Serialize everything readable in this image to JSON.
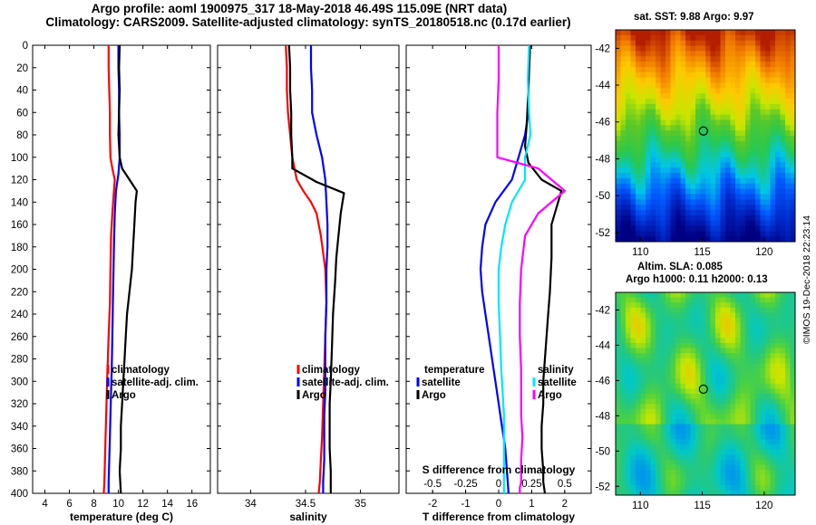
{
  "title_line1": "Argo profile: aoml 1900975_317 18-May-2018 46.49S 115.09E (NRT data)",
  "title_line2": "Climatology: CARS2009. Satellite-adjusted climatology: synTS_20180518.nc (0.17d earlier)",
  "colors": {
    "climatology": "#ff0000",
    "satellite": "#0000ff",
    "argo": "#000000",
    "s_satellite": "#00e5ff",
    "s_climatology": "#ff00ff"
  },
  "chart_data": [
    {
      "type": "line",
      "name": "temperature",
      "xlabel": "temperature (deg C)",
      "ylabel": "",
      "xlim": [
        3,
        17.5
      ],
      "ylim": [
        400,
        0
      ],
      "xticks": [
        4,
        6,
        8,
        10,
        12,
        14,
        16
      ],
      "yticks": [
        0,
        20,
        40,
        60,
        80,
        100,
        120,
        140,
        160,
        180,
        200,
        220,
        240,
        260,
        280,
        300,
        320,
        340,
        360,
        380,
        400
      ],
      "legend": [
        "climatology",
        "satellite-adj. clim.",
        "Argo"
      ],
      "series": [
        {
          "name": "climatology",
          "color": "#ff0000",
          "x": [
            9.2,
            9.2,
            9.25,
            9.3,
            9.3,
            9.35,
            9.5,
            9.7,
            9.6,
            9.5,
            9.4,
            9.35,
            9.3,
            9.2,
            9.1,
            9.05,
            9.0,
            8.95,
            8.9,
            8.85,
            8.8
          ],
          "y": [
            0,
            20,
            40,
            60,
            80,
            100,
            110,
            120,
            135,
            150,
            170,
            200,
            230,
            260,
            290,
            310,
            330,
            350,
            370,
            390,
            400
          ]
        },
        {
          "name": "satellite-adj. clim.",
          "color": "#0000ff",
          "x": [
            10.0,
            10.0,
            10.05,
            10.05,
            10.1,
            10.1,
            10.0,
            9.8,
            9.7,
            9.65,
            9.6,
            9.55,
            9.5,
            9.45,
            9.4,
            9.35,
            9.3,
            9.25,
            9.2,
            9.2
          ],
          "y": [
            0,
            20,
            40,
            60,
            80,
            100,
            115,
            130,
            150,
            170,
            200,
            230,
            260,
            290,
            310,
            330,
            350,
            370,
            390,
            400
          ]
        },
        {
          "name": "Argo",
          "color": "#000000",
          "x": [
            10.1,
            10.05,
            10.1,
            10.05,
            10.0,
            10.1,
            10.3,
            10.9,
            11.5,
            11.4,
            11.3,
            11.2,
            11.1,
            10.9,
            10.7,
            10.6,
            10.5,
            10.4,
            10.3,
            10.2,
            10.2,
            10.1,
            10.2
          ],
          "y": [
            0,
            20,
            40,
            60,
            80,
            100,
            110,
            120,
            130,
            140,
            160,
            180,
            200,
            220,
            240,
            260,
            280,
            300,
            320,
            340,
            360,
            380,
            400
          ]
        }
      ]
    },
    {
      "type": "line",
      "name": "salinity",
      "xlabel": "salinity",
      "ylabel": "",
      "xlim": [
        33.7,
        35.35
      ],
      "ylim": [
        400,
        0
      ],
      "xticks": [
        34,
        34.5,
        35
      ],
      "xticklabels": [
        "34",
        "34.5",
        "35"
      ],
      "legend": [
        "climatology",
        "satellite-adj. clim.",
        "Argo"
      ],
      "series": [
        {
          "name": "climatology",
          "color": "#ff0000",
          "x": [
            34.32,
            34.33,
            34.33,
            34.34,
            34.36,
            34.38,
            34.4,
            34.42,
            34.48,
            34.55,
            34.6,
            34.64,
            34.68,
            34.69,
            34.68,
            34.67,
            34.66,
            34.65,
            34.64,
            34.63,
            34.62
          ],
          "y": [
            0,
            20,
            40,
            60,
            80,
            100,
            110,
            120,
            130,
            140,
            150,
            170,
            200,
            230,
            260,
            290,
            320,
            350,
            370,
            390,
            400
          ]
        },
        {
          "name": "satellite-adj. clim.",
          "color": "#0000ff",
          "x": [
            34.55,
            34.55,
            34.56,
            34.56,
            34.6,
            34.65,
            34.68,
            34.69,
            34.7,
            34.7,
            34.69,
            34.69,
            34.68,
            34.68,
            34.68,
            34.67,
            34.67,
            34.67,
            34.66,
            34.66
          ],
          "y": [
            0,
            20,
            40,
            60,
            80,
            100,
            120,
            140,
            160,
            180,
            200,
            230,
            260,
            290,
            310,
            330,
            350,
            370,
            390,
            400
          ]
        },
        {
          "name": "Argo",
          "color": "#000000",
          "x": [
            34.35,
            34.36,
            34.36,
            34.37,
            34.37,
            34.38,
            34.38,
            34.6,
            34.85,
            34.82,
            34.8,
            34.78,
            34.77,
            34.75,
            34.74,
            34.73,
            34.72,
            34.72,
            34.72,
            34.73,
            34.73
          ],
          "y": [
            0,
            20,
            40,
            60,
            80,
            100,
            110,
            122,
            132,
            150,
            170,
            190,
            210,
            240,
            270,
            300,
            320,
            340,
            360,
            380,
            400
          ]
        }
      ]
    },
    {
      "type": "line",
      "name": "differences",
      "xlabel": "T difference from climatology",
      "xlabel_top": "S difference from climatology",
      "xlim": [
        -2.8,
        2.8
      ],
      "ylim": [
        400,
        0
      ],
      "xticks": [
        -2,
        -1,
        0,
        1,
        2
      ],
      "top_axis": {
        "xlim": [
          -0.7,
          0.7
        ],
        "xticks": [
          -0.5,
          -0.25,
          0,
          0.25,
          0.5
        ],
        "xticklabels": [
          "-0.5",
          "-0.25",
          "0",
          "0.25",
          "0.5"
        ]
      },
      "legend_temperature": {
        "title": "temperature",
        "entries": [
          "satellite",
          "Argo"
        ]
      },
      "legend_salinity": {
        "title": "salinity",
        "entries": [
          "satellite",
          "Argo"
        ]
      },
      "series": [
        {
          "name": "temperature satellite",
          "axis": "T",
          "color": "#0000ff",
          "x": [
            0.95,
            0.9,
            0.9,
            0.8,
            0.6,
            0.4,
            -0.1,
            -0.4,
            -0.5,
            -0.55,
            -0.5,
            -0.4,
            -0.3,
            -0.2,
            -0.1,
            0.0,
            0.1,
            0.2,
            0.25,
            0.3
          ],
          "y": [
            0,
            30,
            60,
            80,
            100,
            120,
            140,
            160,
            180,
            200,
            220,
            240,
            260,
            280,
            300,
            320,
            340,
            360,
            380,
            400
          ]
        },
        {
          "name": "temperature Argo",
          "axis": "T",
          "color": "#000000",
          "x": [
            0.95,
            0.9,
            0.85,
            0.8,
            0.9,
            1.3,
            1.9,
            1.6,
            1.6,
            1.55,
            1.5,
            1.45,
            1.4,
            1.35,
            1.35,
            1.3,
            1.3,
            1.35,
            1.35,
            1.4
          ],
          "y": [
            0,
            40,
            70,
            90,
            105,
            120,
            130,
            160,
            190,
            220,
            240,
            260,
            280,
            300,
            320,
            340,
            360,
            380,
            390,
            400
          ]
        },
        {
          "name": "salinity satellite",
          "axis": "S",
          "color": "#00e5ff",
          "x": [
            0.23,
            0.22,
            0.23,
            0.24,
            0.2,
            0.2,
            0.1,
            0.05,
            0.02,
            0.0,
            0.0,
            0.01,
            0.02,
            0.03,
            0.04,
            0.04,
            0.04,
            0.04,
            0.04,
            0.04
          ],
          "y": [
            0,
            30,
            60,
            80,
            100,
            120,
            140,
            160,
            180,
            200,
            230,
            260,
            290,
            310,
            330,
            350,
            370,
            390,
            395,
            400
          ]
        },
        {
          "name": "salinity Argo",
          "axis": "S",
          "color": "#ff00ff",
          "x": [
            0.0,
            0.0,
            -0.01,
            -0.01,
            -0.01,
            0.3,
            0.5,
            0.3,
            0.2,
            0.17,
            0.16,
            0.16,
            0.17,
            0.17,
            0.17,
            0.18,
            0.17,
            0.17,
            0.16,
            0.16
          ],
          "y": [
            0,
            30,
            60,
            80,
            100,
            110,
            130,
            150,
            170,
            200,
            230,
            260,
            290,
            310,
            330,
            350,
            370,
            390,
            395,
            400
          ]
        }
      ]
    },
    {
      "type": "heatmap",
      "name": "sst-map",
      "title": "sat. SST: 9.88 Argo: 9.97",
      "xlim": [
        108,
        122.5
      ],
      "ylim": [
        -52.5,
        -41
      ],
      "xticks": [
        110,
        115,
        120
      ],
      "yticks": [
        -42,
        -44,
        -46,
        -48,
        -50,
        -52
      ],
      "marker": {
        "lon": 115.09,
        "lat": -46.49
      }
    },
    {
      "type": "heatmap",
      "name": "sla-map",
      "title_line1": "Altim. SLA: 0.085",
      "title_line2": "Argo h1000: 0.11 h2000: 0.13",
      "xlim": [
        108,
        122.5
      ],
      "ylim": [
        -52.5,
        -41
      ],
      "xticks": [
        110,
        115,
        120
      ],
      "yticks": [
        -42,
        -44,
        -46,
        -48,
        -50,
        -52
      ],
      "marker": {
        "lon": 115.09,
        "lat": -46.49
      }
    }
  ],
  "credit": "©IMOS 19-Dec-2018 22:23:14"
}
